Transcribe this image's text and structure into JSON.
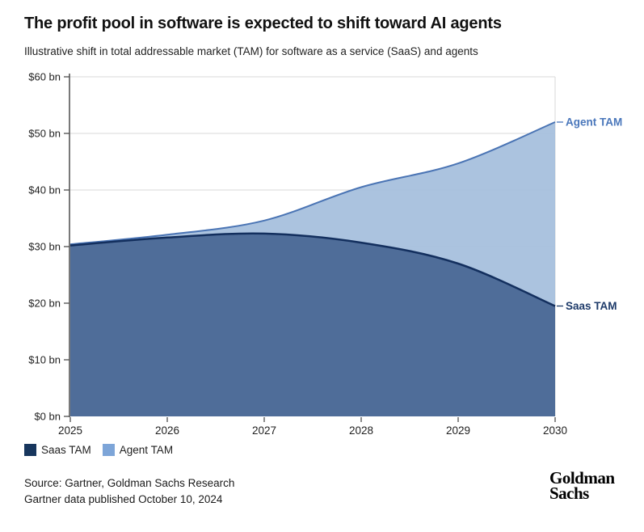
{
  "header": {
    "title": "The profit pool in software is expected to shift toward AI agents",
    "subtitle": "Illustrative shift in total addressable market (TAM) for software as a service (SaaS) and agents"
  },
  "chart_data": {
    "type": "area",
    "stacked": true,
    "x": [
      2025,
      2026,
      2027,
      2028,
      2029,
      2030
    ],
    "series": [
      {
        "name": "Saas TAM",
        "values": [
          30.2,
          31.6,
          32.3,
          30.7,
          27.0,
          19.5
        ],
        "fill": "#4f6d99",
        "stroke": "#132f5e",
        "stroke_width": 2.5,
        "label_color": "#1d3a69",
        "legend_swatch": "#17365d"
      },
      {
        "name": "Agent TAM",
        "values": [
          0.2,
          0.5,
          2.3,
          9.8,
          17.7,
          32.5
        ],
        "fill": "#a8c1de",
        "stroke": "#4a74b4",
        "stroke_width": 2,
        "label_color": "#4a77bb",
        "legend_swatch": "#7da5d8"
      }
    ],
    "title": "The profit pool in software is expected to shift toward AI agents",
    "xlabel": "",
    "ylabel": "",
    "ylim": [
      0,
      60
    ],
    "ytick_step": 10,
    "ytick_labels": [
      "$0 bn",
      "$10 bn",
      "$20 bn",
      "$30 bn",
      "$40 bn",
      "$50 bn",
      "$60 bn"
    ],
    "xtick_labels": [
      "2025",
      "2026",
      "2027",
      "2028",
      "2029",
      "2030"
    ],
    "grid": "horizontal",
    "legend_position": "bottom-left",
    "colors": {
      "gridline": "#d9d9d9",
      "axis": "#4d4d4d",
      "tick_text": "#1f1f1f"
    }
  },
  "legend": {
    "items": [
      {
        "label": "Saas TAM",
        "color": "#17365d"
      },
      {
        "label": "Agent TAM",
        "color": "#7da5d8"
      }
    ]
  },
  "footer": {
    "source_line1": "Source: Gartner, Goldman Sachs Research",
    "source_line2": "Gartner data published October 10, 2024",
    "logo_line1": "Goldman",
    "logo_line2": "Sachs"
  }
}
